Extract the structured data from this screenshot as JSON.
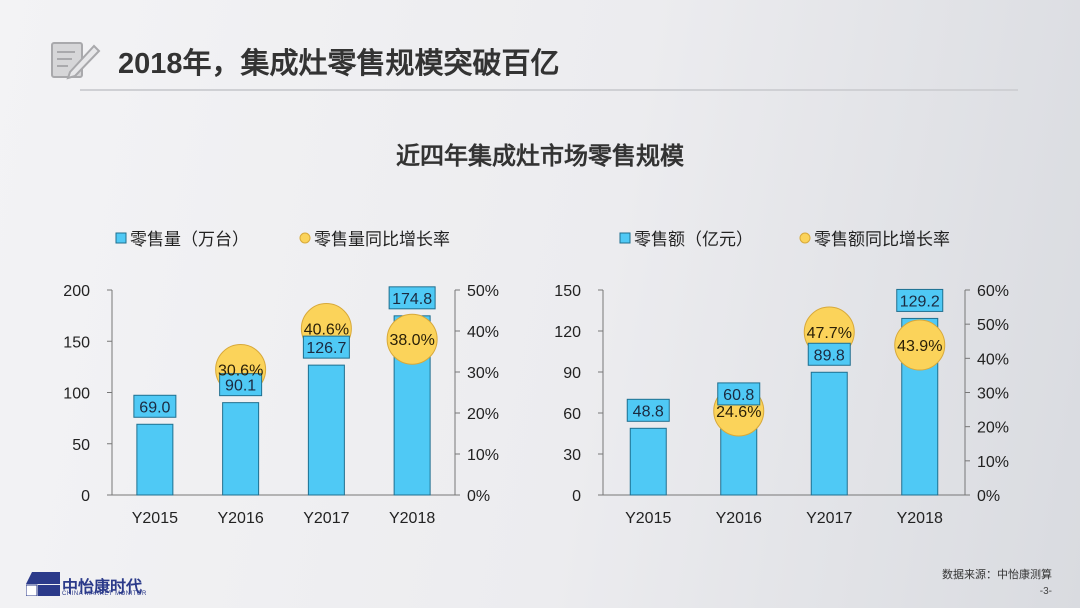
{
  "header": {
    "title": "2018年，集成灶零售规模突破百亿",
    "icon": "notepad-pen-icon"
  },
  "subtitle": "近四年集成灶市场零售规模",
  "footer": {
    "source": "数据来源：中怡康测算",
    "page": "-3-",
    "logo_cn": "中怡康时代",
    "logo_en": "CHINA MARKET MONITOR"
  },
  "colors": {
    "bar": "#4fc9f5",
    "bar_stroke": "#1f6f8f",
    "circle": "#fbd35a",
    "circle_stroke": "#d8a93a"
  },
  "chart_data": [
    {
      "type": "bar",
      "categories": [
        "Y2015",
        "Y2016",
        "Y2017",
        "Y2018"
      ],
      "series": [
        {
          "name": "零售量（万台）",
          "values": [
            69.0,
            90.1,
            126.7,
            174.8
          ],
          "labels": [
            "69.0",
            "90.1",
            "126.7",
            "174.8"
          ],
          "axis": "left",
          "kind": "bar"
        },
        {
          "name": "零售量同比增长率",
          "values": [
            null,
            30.6,
            40.6,
            38.0
          ],
          "labels": [
            "",
            "30.6%",
            "40.6%",
            "38.0%"
          ],
          "axis": "right",
          "kind": "bubble"
        }
      ],
      "ylim": [
        0,
        200
      ],
      "yticks": [
        "0",
        "50",
        "100",
        "150",
        "200"
      ],
      "y2lim": [
        0,
        50
      ],
      "y2ticks": [
        "0%",
        "10%",
        "20%",
        "30%",
        "40%",
        "50%"
      ],
      "legend": "top",
      "grid": false
    },
    {
      "type": "bar",
      "categories": [
        "Y2015",
        "Y2016",
        "Y2017",
        "Y2018"
      ],
      "series": [
        {
          "name": "零售额（亿元）",
          "values": [
            48.8,
            60.8,
            89.8,
            129.2
          ],
          "labels": [
            "48.8",
            "60.8",
            "89.8",
            "129.2"
          ],
          "axis": "left",
          "kind": "bar"
        },
        {
          "name": "零售额同比增长率",
          "values": [
            null,
            24.6,
            47.7,
            43.9
          ],
          "labels": [
            "",
            "24.6%",
            "47.7%",
            "43.9%"
          ],
          "axis": "right",
          "kind": "bubble"
        }
      ],
      "ylim": [
        0,
        150
      ],
      "yticks": [
        "0",
        "30",
        "60",
        "90",
        "120",
        "150"
      ],
      "y2lim": [
        0,
        60
      ],
      "y2ticks": [
        "0%",
        "10%",
        "20%",
        "30%",
        "40%",
        "50%",
        "60%"
      ],
      "legend": "top",
      "grid": false
    }
  ]
}
